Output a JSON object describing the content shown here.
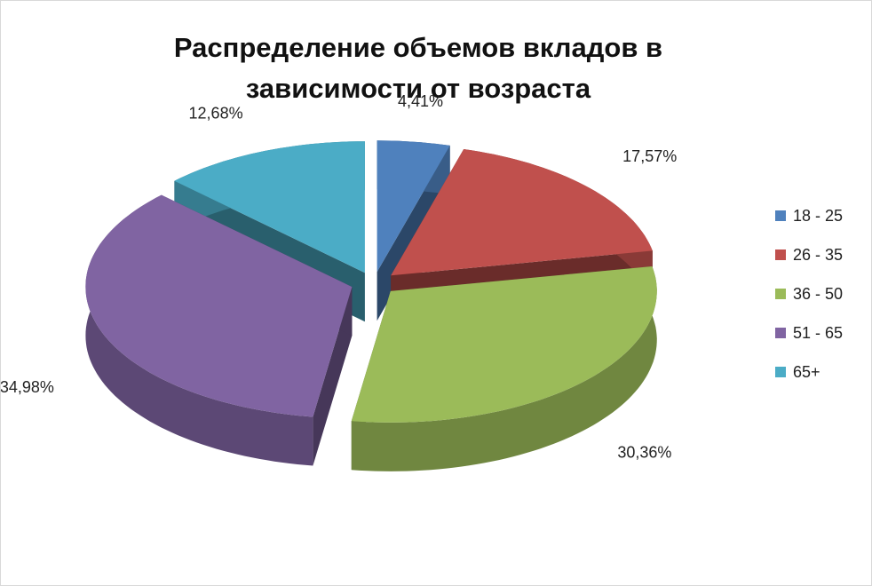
{
  "chart_data": {
    "type": "pie3d",
    "title": "Распределение объемов вкладов в зависимости от возраста",
    "categories": [
      "18 - 25",
      "26 - 35",
      "36 - 50",
      "51 - 65",
      "65+"
    ],
    "values": [
      4.41,
      17.57,
      30.36,
      34.98,
      12.68
    ],
    "value_labels": [
      "4,41%",
      "17,57%",
      "30,36%",
      "34,98%",
      "12,68%"
    ],
    "colors": [
      "#4f81bd",
      "#c0504d",
      "#9bbb59",
      "#8064a2",
      "#4bacc6"
    ],
    "legend": "right"
  }
}
